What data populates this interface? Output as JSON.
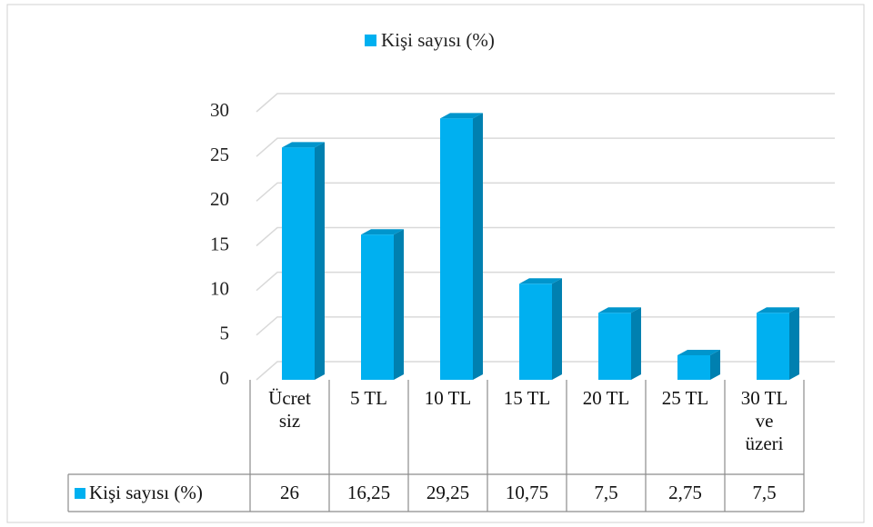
{
  "chart_data": {
    "type": "bar3d",
    "categories": [
      "Ücret\nsiz",
      "5 TL",
      "10 TL",
      "15 TL",
      "20 TL",
      "25 TL",
      "30 TL\nve\nüzeri"
    ],
    "series": [
      {
        "name": "Kişi sayısı (%)",
        "color": "#00b0f0",
        "values": [
          26,
          16.25,
          29.25,
          10.75,
          7.5,
          2.75,
          7.5
        ],
        "value_labels": [
          "26",
          "16,25",
          "29,25",
          "10,75",
          "7,5",
          "2,75",
          "7,5"
        ]
      }
    ],
    "ylim": [
      0,
      30
    ],
    "yticks": [
      0,
      5,
      10,
      15,
      20,
      25,
      30
    ],
    "grid": true,
    "legend": "top"
  }
}
